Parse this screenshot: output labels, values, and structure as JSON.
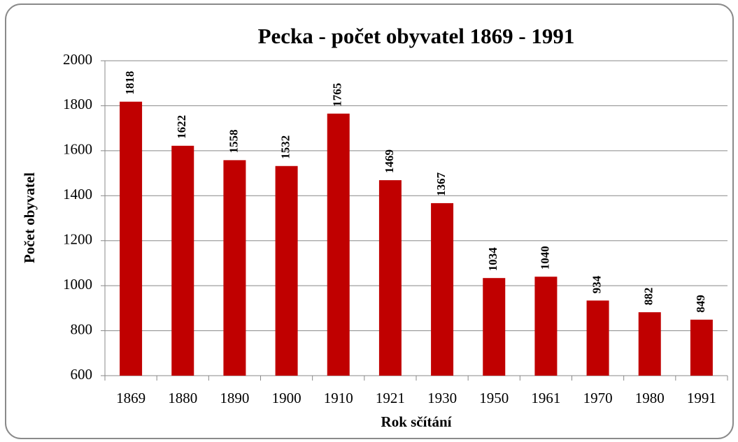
{
  "chart_data": {
    "type": "bar",
    "title": "Pecka - počet obyvatel 1869 - 1991",
    "x_label": "Rok sčítání",
    "y_label": "Počet obyvatel",
    "categories": [
      "1869",
      "1880",
      "1890",
      "1900",
      "1910",
      "1921",
      "1930",
      "1950",
      "1961",
      "1970",
      "1980",
      "1991"
    ],
    "values": [
      1818,
      1622,
      1558,
      1532,
      1765,
      1469,
      1367,
      1034,
      1040,
      934,
      882,
      849
    ],
    "color": "#c00000",
    "ylim": [
      600,
      2000
    ],
    "yticks": [
      600,
      800,
      1000,
      1200,
      1400,
      1600,
      1800,
      2000
    ],
    "grid": true
  }
}
